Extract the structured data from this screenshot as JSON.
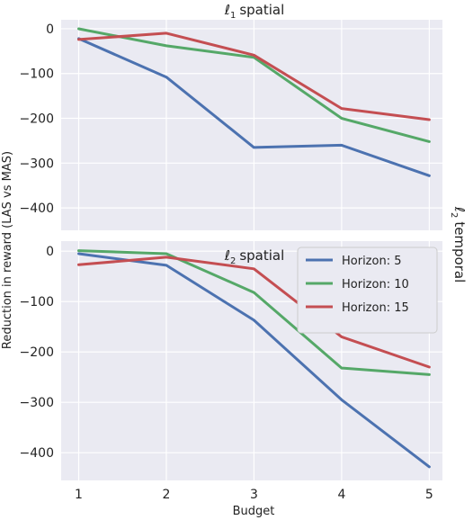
{
  "figure": {
    "ylabel": "Reduction in reward (LAS vs MAS)",
    "xlabel": "Budget",
    "side_label_symbol": "ℓ",
    "side_label_sub": "2",
    "side_label_word": "temporal"
  },
  "chart_data": [
    {
      "type": "line",
      "title_symbol": "ℓ",
      "title_sub": "1",
      "title_word": "spatial",
      "x": [
        1,
        2,
        3,
        4,
        5
      ],
      "xticks": [
        "1",
        "2",
        "3",
        "4",
        "5"
      ],
      "ylim": [
        -450,
        20
      ],
      "yticks": [
        "0",
        "−100",
        "−200",
        "−300",
        "−400"
      ],
      "ytick_values": [
        0,
        -100,
        -200,
        -300,
        -400
      ],
      "grid": true,
      "series": [
        {
          "name": "Horizon: 5",
          "color": "#4c72b0",
          "values": [
            -22,
            -108,
            -265,
            -260,
            -328
          ]
        },
        {
          "name": "Horizon: 10",
          "color": "#55a868",
          "values": [
            0,
            -38,
            -64,
            -200,
            -252
          ]
        },
        {
          "name": "Horizon: 15",
          "color": "#c44e52",
          "values": [
            -24,
            -10,
            -59,
            -178,
            -203
          ]
        }
      ]
    },
    {
      "type": "line",
      "title_symbol": "ℓ",
      "title_sub": "2",
      "title_word": "spatial",
      "x": [
        1,
        2,
        3,
        4,
        5
      ],
      "xticks": [
        "1",
        "2",
        "3",
        "4",
        "5"
      ],
      "ylim": [
        -455,
        20
      ],
      "yticks": [
        "0",
        "−100",
        "−200",
        "−300",
        "−400"
      ],
      "ytick_values": [
        0,
        -100,
        -200,
        -300,
        -400
      ],
      "grid": true,
      "legend_position": "top-right",
      "series": [
        {
          "name": "Horizon: 5",
          "color": "#4c72b0",
          "values": [
            -5,
            -28,
            -137,
            -295,
            -428
          ]
        },
        {
          "name": "Horizon: 10",
          "color": "#55a868",
          "values": [
            1,
            -5,
            -82,
            -232,
            -245
          ]
        },
        {
          "name": "Horizon: 15",
          "color": "#c44e52",
          "values": [
            -27,
            -12,
            -35,
            -170,
            -230
          ]
        }
      ]
    }
  ]
}
